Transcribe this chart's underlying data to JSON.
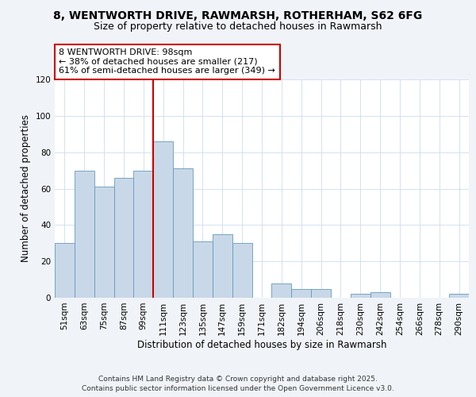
{
  "title": "8, WENTWORTH DRIVE, RAWMARSH, ROTHERHAM, S62 6FG",
  "subtitle": "Size of property relative to detached houses in Rawmarsh",
  "xlabel": "Distribution of detached houses by size in Rawmarsh",
  "ylabel": "Number of detached properties",
  "bin_labels": [
    "51sqm",
    "63sqm",
    "75sqm",
    "87sqm",
    "99sqm",
    "111sqm",
    "123sqm",
    "135sqm",
    "147sqm",
    "159sqm",
    "171sqm",
    "182sqm",
    "194sqm",
    "206sqm",
    "218sqm",
    "230sqm",
    "242sqm",
    "254sqm",
    "266sqm",
    "278sqm",
    "290sqm"
  ],
  "bar_heights": [
    30,
    70,
    61,
    66,
    70,
    86,
    71,
    31,
    35,
    30,
    0,
    8,
    5,
    5,
    0,
    2,
    3,
    0,
    0,
    0,
    2
  ],
  "bar_color": "#c8d8e8",
  "bar_edge_color": "#6699bb",
  "vline_x": 4.5,
  "vline_color": "#cc0000",
  "annotation_text": "8 WENTWORTH DRIVE: 98sqm\n← 38% of detached houses are smaller (217)\n61% of semi-detached houses are larger (349) →",
  "annotation_box_color": "#ffffff",
  "annotation_box_edge": "#cc0000",
  "ylim": [
    0,
    120
  ],
  "yticks": [
    0,
    20,
    40,
    60,
    80,
    100,
    120
  ],
  "footer_line1": "Contains HM Land Registry data © Crown copyright and database right 2025.",
  "footer_line2": "Contains public sector information licensed under the Open Government Licence v3.0.",
  "bg_color": "#f0f4f8",
  "plot_bg_color": "#ffffff",
  "title_fontsize": 10,
  "subtitle_fontsize": 9,
  "axis_label_fontsize": 8.5,
  "tick_fontsize": 7.5,
  "annotation_fontsize": 8,
  "footer_fontsize": 6.5
}
